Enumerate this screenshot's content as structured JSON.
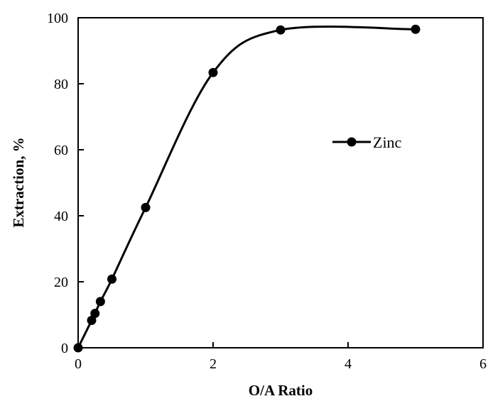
{
  "chart_data": {
    "type": "scatter",
    "title": "",
    "xlabel": "O/A Ratio",
    "ylabel": "Extraction, %",
    "xlim": [
      0,
      6
    ],
    "ylim": [
      0,
      100
    ],
    "x_ticks": [
      "0",
      "2",
      "4",
      "6"
    ],
    "y_ticks": [
      "0",
      "20",
      "40",
      "60",
      "80",
      "100"
    ],
    "grid": false,
    "legend_position": "right",
    "series": [
      {
        "name": "Zinc",
        "color": "#000000",
        "marker": "circle",
        "line": "smooth",
        "x": [
          0,
          0.2,
          0.25,
          0.33,
          0.5,
          1,
          2,
          3,
          5
        ],
        "y": [
          0,
          8.3,
          10.4,
          14.0,
          20.8,
          42.5,
          83.4,
          96.3,
          96.5
        ]
      }
    ]
  }
}
